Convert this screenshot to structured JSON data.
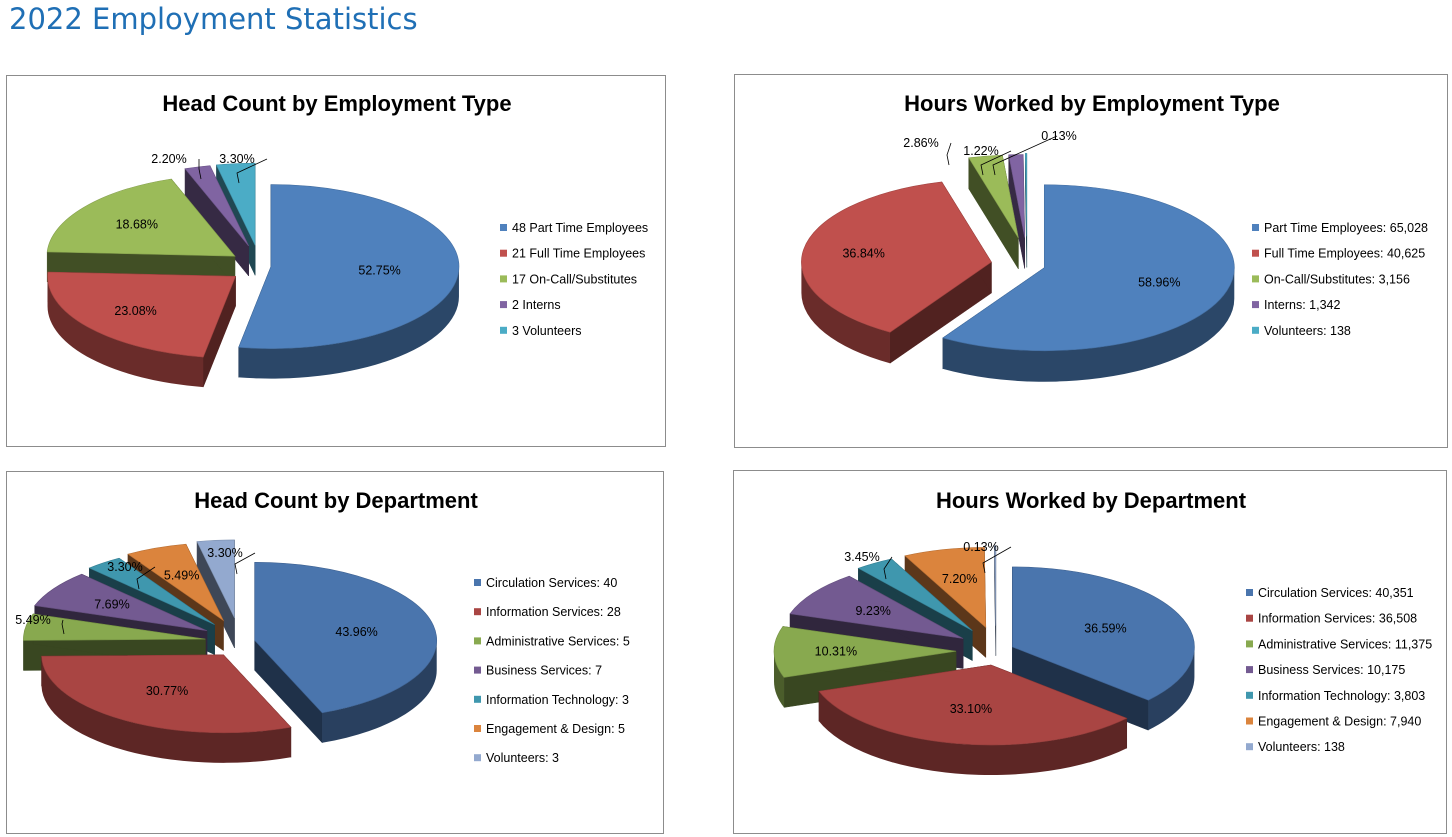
{
  "page": {
    "title": "2022 Employment Statistics"
  },
  "chart_data": [
    {
      "type": "pie",
      "title": "Head Count by Employment Type",
      "slices": [
        {
          "legend": "48 Part Time Employees",
          "value": 48,
          "percent": 52.75,
          "label": "52.75%",
          "color": "#4f81bd"
        },
        {
          "legend": "21 Full Time Employees",
          "value": 21,
          "percent": 23.08,
          "label": "23.08%",
          "color": "#c0504d"
        },
        {
          "legend": "17 On-Call/Substitutes",
          "value": 17,
          "percent": 18.68,
          "label": "18.68%",
          "color": "#9bbb59"
        },
        {
          "legend": "2 Interns",
          "value": 2,
          "percent": 2.2,
          "label": "2.20%",
          "color": "#8064a2"
        },
        {
          "legend": "3 Volunteers",
          "value": 3,
          "percent": 3.3,
          "label": "3.30%",
          "color": "#4bacc6"
        }
      ],
      "legend_position": "right",
      "style": "3d-exploded"
    },
    {
      "type": "pie",
      "title": "Hours Worked by Employment Type",
      "slices": [
        {
          "legend": "Part Time Employees: 65,028",
          "value": 65028,
          "percent": 58.96,
          "label": "58.96%",
          "color": "#4f81bd"
        },
        {
          "legend": "Full Time Employees: 40,625",
          "value": 40625,
          "percent": 36.84,
          "label": "36.84%",
          "color": "#c0504d"
        },
        {
          "legend": "On-Call/Substitutes: 3,156",
          "value": 3156,
          "percent": 2.86,
          "label": "2.86%",
          "color": "#9bbb59"
        },
        {
          "legend": "Interns: 1,342",
          "value": 1342,
          "percent": 1.22,
          "label": "1.22%",
          "color": "#8064a2"
        },
        {
          "legend": "Volunteers: 138",
          "value": 138,
          "percent": 0.13,
          "label": "0.13%",
          "color": "#4bacc6"
        }
      ],
      "legend_position": "right",
      "style": "3d-exploded"
    },
    {
      "type": "pie",
      "title": "Head Count by Department",
      "slices": [
        {
          "legend": "Circulation Services: 40",
          "value": 40,
          "percent": 43.96,
          "label": "43.96%",
          "color": "#4a75ad"
        },
        {
          "legend": "Information Services: 28",
          "value": 28,
          "percent": 30.77,
          "label": "30.77%",
          "color": "#a94543"
        },
        {
          "legend": "Administrative Services: 5",
          "value": 5,
          "percent": 5.49,
          "label": "5.49%",
          "color": "#88a94f"
        },
        {
          "legend": "Business Services: 7",
          "value": 7,
          "percent": 7.69,
          "label": "7.69%",
          "color": "#735a91"
        },
        {
          "legend": "Information Technology: 3",
          "value": 3,
          "percent": 3.3,
          "label": "3.30%",
          "color": "#3f97ae"
        },
        {
          "legend": "Engagement & Design: 5",
          "value": 5,
          "percent": 5.49,
          "label": "5.49%",
          "color": "#db843d"
        },
        {
          "legend": "Volunteers: 3",
          "value": 3,
          "percent": 3.3,
          "label": "3.30%",
          "color": "#93a9cf"
        }
      ],
      "legend_position": "right",
      "style": "3d-exploded"
    },
    {
      "type": "pie",
      "title": "Hours Worked by Department",
      "slices": [
        {
          "legend": "Circulation Services: 40,351",
          "value": 40351,
          "percent": 36.59,
          "label": "36.59%",
          "color": "#4a75ad"
        },
        {
          "legend": "Information Services: 36,508",
          "value": 36508,
          "percent": 33.1,
          "label": "33.10%",
          "color": "#a94543"
        },
        {
          "legend": "Administrative Services: 11,375",
          "value": 11375,
          "percent": 10.31,
          "label": "10.31%",
          "color": "#88a94f"
        },
        {
          "legend": "Business Services: 10,175",
          "value": 10175,
          "percent": 9.23,
          "label": "9.23%",
          "color": "#735a91"
        },
        {
          "legend": "Information Technology: 3,803",
          "value": 3803,
          "percent": 3.45,
          "label": "3.45%",
          "color": "#3f97ae"
        },
        {
          "legend": "Engagement & Design: 7,940",
          "value": 7940,
          "percent": 7.2,
          "label": "7.20%",
          "color": "#db843d"
        },
        {
          "legend": "Volunteers: 138",
          "value": 138,
          "percent": 0.13,
          "label": "0.13%",
          "color": "#93a9cf"
        }
      ],
      "legend_position": "right",
      "style": "3d-exploded"
    }
  ]
}
